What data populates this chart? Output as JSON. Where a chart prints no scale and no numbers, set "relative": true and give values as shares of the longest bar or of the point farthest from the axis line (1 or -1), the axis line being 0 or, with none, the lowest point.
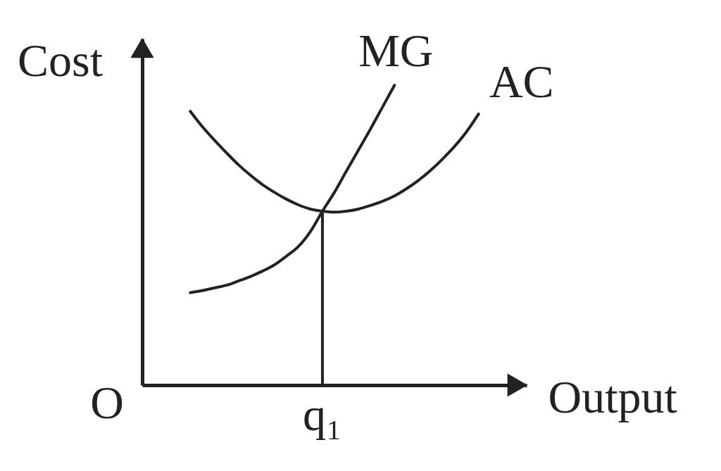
{
  "chart_data": {
    "type": "line",
    "relative": true,
    "xlabel": "Output",
    "ylabel": "Cost",
    "categories": [
      null,
      null,
      null,
      null,
      null,
      null,
      null,
      null,
      null,
      null,
      null,
      null,
      null,
      null,
      null,
      null,
      null,
      null,
      null,
      null,
      null,
      null,
      null,
      null,
      null,
      null,
      null,
      null,
      null,
      null,
      null,
      null,
      null
    ],
    "series": [
      {
        "name": "MG",
        "color": "#222222",
        "values": [
          null,
          null,
          null,
          null,
          0.308,
          0.315,
          0.324,
          0.333,
          0.347,
          0.362,
          0.38,
          0.401,
          0.43,
          0.462,
          0.512,
          0.58,
          0.643,
          0.714,
          0.784,
          0.854,
          0.927,
          1.0,
          null,
          null,
          null,
          null,
          null,
          null,
          null,
          null,
          null,
          null,
          null
        ]
      },
      {
        "name": "AC",
        "color": "#222222",
        "values": [
          null,
          null,
          null,
          null,
          0.913,
          0.862,
          0.817,
          0.775,
          0.735,
          0.7,
          0.669,
          0.643,
          0.62,
          0.601,
          0.587,
          0.58,
          0.577,
          0.58,
          0.587,
          0.599,
          0.613,
          0.631,
          0.655,
          0.683,
          0.716,
          0.754,
          0.796,
          0.845,
          0.904,
          null,
          null,
          null,
          null
        ]
      }
    ],
    "annotations": [
      "O",
      "q₁"
    ]
  }
}
